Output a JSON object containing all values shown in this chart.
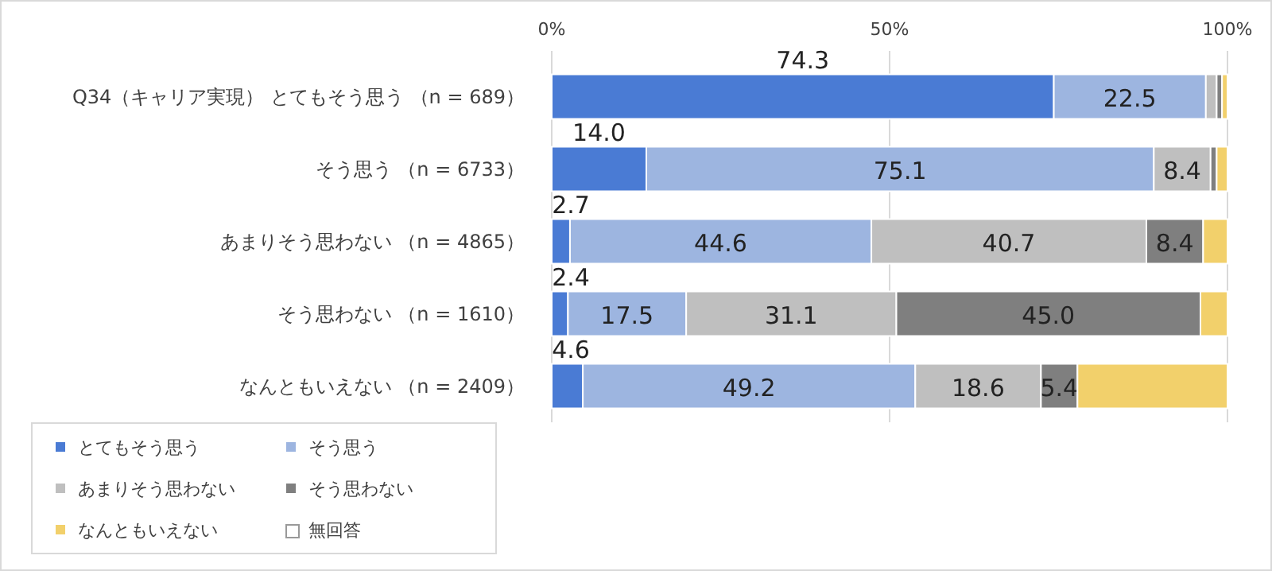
{
  "chart_data": {
    "type": "bar",
    "orientation": "horizontal",
    "stacked": true,
    "categories": [
      "Q34（キャリア実現） とてもそう思う （n = 689）",
      "そう思う （n = 6733）",
      "あまりそう思わない （n = 4865）",
      "そう思わない （n = 1610）",
      "なんともいえない （n = 2409）"
    ],
    "series": [
      {
        "name": "とてもそう思う",
        "color": "#4a7bd4",
        "values": [
          74.3,
          14.0,
          2.7,
          2.4,
          4.6
        ],
        "value_labels": [
          "74.3",
          "14.0",
          "2.7",
          "2.4",
          "4.6"
        ]
      },
      {
        "name": "そう思う",
        "color": "#9db5e0",
        "values": [
          22.5,
          75.1,
          44.6,
          17.5,
          49.2
        ],
        "value_labels": [
          "22.5",
          "75.1",
          "44.6",
          "17.5",
          "49.2"
        ]
      },
      {
        "name": "あまりそう思わない",
        "color": "#bfbfbf",
        "values": [
          1.6,
          8.4,
          40.7,
          31.1,
          18.6
        ],
        "value_labels": [
          null,
          "8.4",
          "40.7",
          "31.1",
          "18.6"
        ]
      },
      {
        "name": "そう思わない",
        "color": "#7f7f7f",
        "values": [
          0.8,
          0.9,
          8.4,
          45.0,
          5.4
        ],
        "value_labels": [
          null,
          null,
          "8.4",
          "45.0",
          "5.4"
        ]
      },
      {
        "name": "なんともいえない",
        "color": "#f2d06b",
        "values": [
          0.8,
          1.6,
          3.6,
          4.0,
          22.2
        ],
        "value_labels": [
          null,
          null,
          null,
          null,
          null
        ]
      },
      {
        "name": "無回答",
        "color": "#ffffff",
        "values": [
          0,
          0,
          0,
          0,
          0
        ],
        "value_labels": [
          null,
          null,
          null,
          null,
          null
        ]
      }
    ],
    "xlim": [
      0,
      100
    ],
    "xticks": [
      {
        "value": 0,
        "label": "0%"
      },
      {
        "value": 50,
        "label": "50%"
      },
      {
        "value": 100,
        "label": "100%"
      }
    ],
    "grid": "x",
    "legend": "bottom left"
  }
}
